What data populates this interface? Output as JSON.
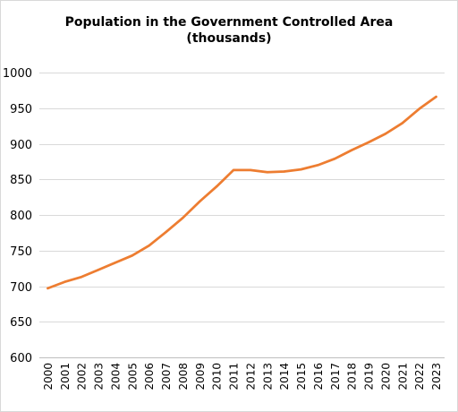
{
  "chart_data": {
    "type": "line",
    "title_lines": [
      "Population in the Government Controlled Area",
      "(thousands)"
    ],
    "xlabel": "",
    "ylabel": "",
    "ylim": [
      600,
      1000
    ],
    "y_ticks": [
      600,
      650,
      700,
      750,
      800,
      850,
      900,
      950,
      1000
    ],
    "grid": true,
    "legend": "none",
    "categories": [
      "2000",
      "2001",
      "2002",
      "2003",
      "2004",
      "2005",
      "2006",
      "2007",
      "2008",
      "2009",
      "2010",
      "2011",
      "2012",
      "2013",
      "2014",
      "2015",
      "2016",
      "2017",
      "2018",
      "2019",
      "2020",
      "2021",
      "2022",
      "2023"
    ],
    "series": [
      {
        "color": "#ed7d31",
        "values": [
          697,
          706,
          713,
          723,
          733,
          743,
          757,
          776,
          796,
          819,
          840,
          863,
          863,
          860,
          861,
          864,
          870,
          879,
          891,
          902,
          914,
          929,
          949,
          966
        ]
      }
    ],
    "colors": {
      "gridline": "#d9d9d9",
      "axis": "#bfbfbf",
      "line": "#ed7d31"
    }
  }
}
